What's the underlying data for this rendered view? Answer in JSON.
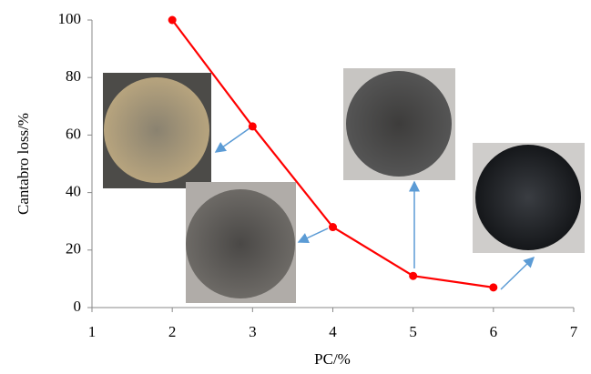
{
  "chart_data": {
    "type": "line",
    "x_label": "PC/%",
    "y_label": "Cantabro loss/%",
    "x": [
      2,
      3,
      4,
      5,
      6
    ],
    "series": [
      {
        "color": "#ff0000",
        "values": [
          100,
          63,
          28,
          11,
          7
        ]
      }
    ],
    "xlim": [
      1,
      7
    ],
    "xticks": [
      1,
      2,
      3,
      4,
      5,
      6,
      7
    ],
    "ylim": [
      0,
      100
    ],
    "yticks": [
      0,
      20,
      40,
      60,
      80,
      100
    ],
    "grid": false
  }
}
